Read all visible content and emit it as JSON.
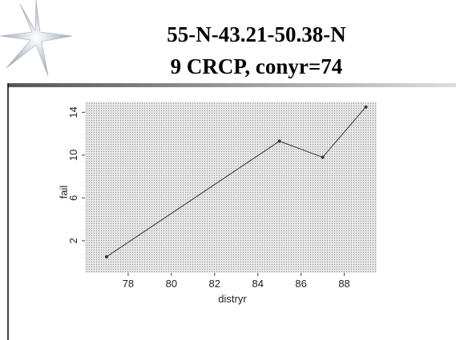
{
  "chart_data": {
    "type": "line",
    "title": "55-N-43.21-50.38-N",
    "subtitle": "9 CRCP, conyr=74",
    "x_label": "distryr",
    "y_label": "fail",
    "x": [
      77,
      85,
      87,
      89
    ],
    "series": [
      {
        "name": "fail",
        "color": "#333333",
        "values": [
          0.5,
          11.3,
          9.8,
          14.5
        ]
      }
    ],
    "xlim": [
      76,
      89.5
    ],
    "ylim": [
      -1,
      15
    ],
    "xticks": [
      78,
      80,
      82,
      84,
      86,
      88
    ],
    "yticks": [
      2,
      6,
      10,
      14
    ]
  }
}
